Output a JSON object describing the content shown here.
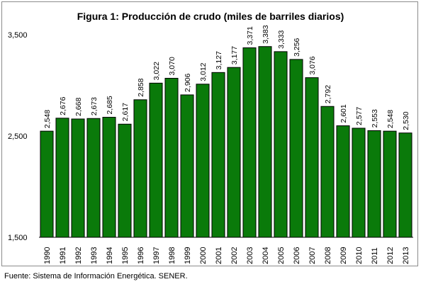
{
  "chart_data": {
    "type": "bar",
    "title": "Figura 1: Producción de crudo (miles de barriles diarios)",
    "xlabel": "",
    "ylabel": "",
    "categories": [
      "1990",
      "1991",
      "1992",
      "1993",
      "1994",
      "1995",
      "1996",
      "1997",
      "1998",
      "1999",
      "2000",
      "2001",
      "2002",
      "2003",
      "2004",
      "2005",
      "2006",
      "2007",
      "2008",
      "2009",
      "2010",
      "2011",
      "2012",
      "2013"
    ],
    "values": [
      2548,
      2676,
      2668,
      2673,
      2685,
      2617,
      2858,
      3022,
      3070,
      2906,
      3012,
      3127,
      3177,
      3371,
      3383,
      3333,
      3256,
      3076,
      2792,
      2601,
      2577,
      2553,
      2548,
      2530
    ],
    "value_labels": [
      "2,548",
      "2,676",
      "2,668",
      "2,673",
      "2,685",
      "2,617",
      "2,858",
      "3,022",
      "3,070",
      "2,906",
      "3,012",
      "3,127",
      "3,177",
      "3,371",
      "3,383",
      "3,333",
      "3,256",
      "3,076",
      "2,792",
      "2,601",
      "2,577",
      "2,553",
      "2,548",
      "2,530"
    ],
    "ylim": [
      1500,
      3500
    ],
    "yticks": [
      1500,
      2500,
      3500
    ],
    "ytick_labels": [
      "1,500",
      "2,500",
      "3,500"
    ],
    "grid": false,
    "legend": "none",
    "bar_color": "#0a7a0a",
    "bar_border_color": "#000000"
  },
  "source_note": "Fuente: Sistema de Información Energética. SENER."
}
